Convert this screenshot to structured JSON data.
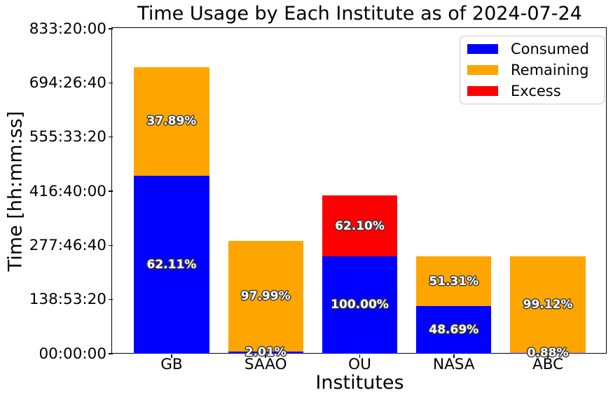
{
  "title": "Time Usage by Each Institute as of 2024-07-24",
  "chart_data": {
    "type": "bar",
    "stacked": true,
    "title": "Time Usage by Each Institute as of 2024-07-24",
    "xlabel": "Institutes",
    "ylabel": "Time [hh:mm:ss]",
    "categories": [
      "GB",
      "SAAO",
      "OU",
      "NASA",
      "ABC"
    ],
    "y_axis": {
      "unit": "seconds shown as hh:mm:ss",
      "min": 0,
      "max": 3000000,
      "tick_step_seconds": 500000,
      "tick_labels": [
        "00:00:00",
        "138:53:20",
        "277:46:40",
        "416:40:00",
        "555:33:20",
        "694:26:40",
        "833:20:00"
      ],
      "grid": false
    },
    "legend": {
      "position": "upper right",
      "entries": [
        {
          "label": "Consumed",
          "color": "#0000ff"
        },
        {
          "label": "Remaining",
          "color": "#ffa500"
        },
        {
          "label": "Excess",
          "color": "#ff0000"
        }
      ]
    },
    "bars": [
      {
        "category": "GB",
        "segments": [
          {
            "series": "Consumed",
            "color": "#0000ff",
            "seconds": 1643430,
            "label": "62.11%"
          },
          {
            "series": "Remaining",
            "color": "#ffa500",
            "seconds": 1002570,
            "label": "37.89%"
          }
        ]
      },
      {
        "category": "SAAO",
        "segments": [
          {
            "series": "Consumed",
            "color": "#0000ff",
            "seconds": 20984,
            "label": "2.01%"
          },
          {
            "series": "Remaining",
            "color": "#ffa500",
            "seconds": 1023016,
            "label": "97.99%"
          }
        ]
      },
      {
        "category": "OU",
        "segments": [
          {
            "series": "Consumed",
            "color": "#0000ff",
            "seconds": 900000,
            "label": "100.00%"
          },
          {
            "series": "Excess",
            "color": "#ff0000",
            "seconds": 558900,
            "label": "62.10%"
          }
        ]
      },
      {
        "category": "NASA",
        "segments": [
          {
            "series": "Consumed",
            "color": "#0000ff",
            "seconds": 438210,
            "label": "48.69%"
          },
          {
            "series": "Remaining",
            "color": "#ffa500",
            "seconds": 461790,
            "label": "51.31%"
          }
        ]
      },
      {
        "category": "ABC",
        "segments": [
          {
            "series": "Consumed",
            "color": "#0000ff",
            "seconds": 7920,
            "label": "0.88%"
          },
          {
            "series": "Remaining",
            "color": "#ffa500",
            "seconds": 892080,
            "label": "99.12%"
          }
        ]
      }
    ]
  },
  "colors": {
    "consumed": "#0000ff",
    "remaining": "#ffa500",
    "excess": "#ff0000",
    "text": "#000000",
    "bar_label_text": "#ffffff",
    "bar_label_outline": "#3d3d3d",
    "legend_border": "#cccccc",
    "background": "#ffffff"
  }
}
